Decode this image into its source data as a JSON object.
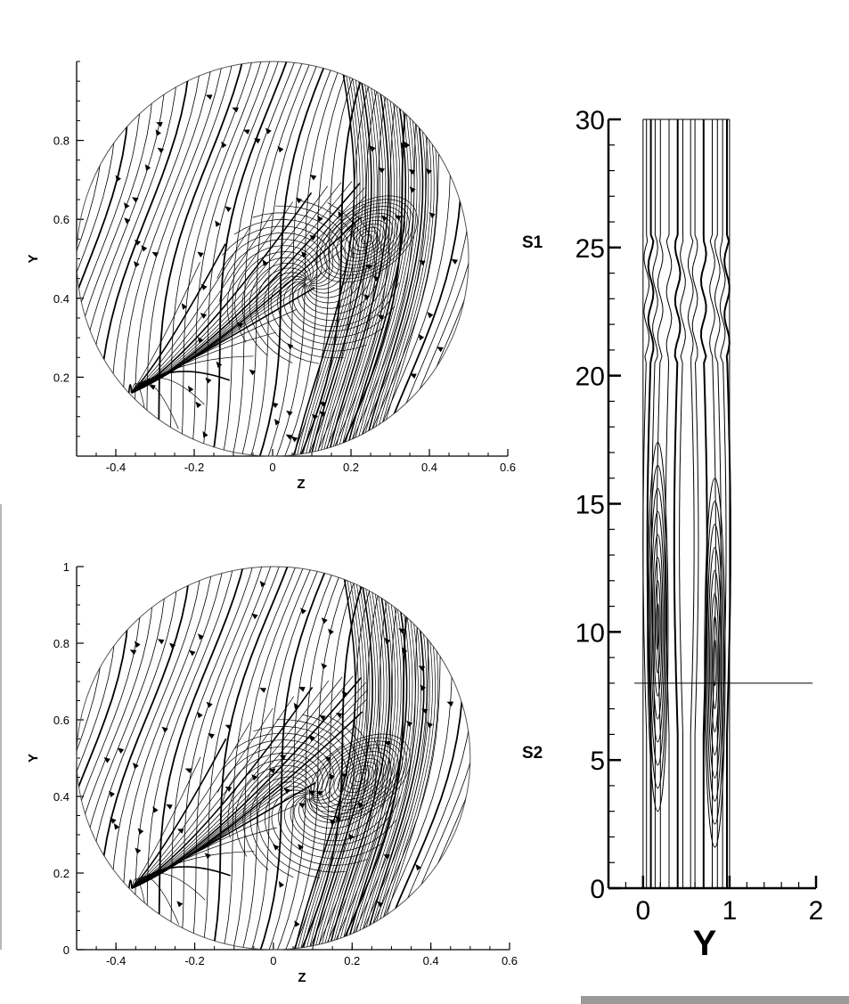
{
  "panels": [
    {
      "id": "top",
      "section_label": "S1",
      "xlabel": "Z",
      "ylabel": "Y",
      "xticks": [
        -0.4,
        -0.2,
        0,
        0.2,
        0.4,
        0.6
      ],
      "xtick_labels": [
        "-0.4",
        "-0.2",
        "0",
        "0.2",
        "0.4",
        "0.6"
      ],
      "yticks": [
        0.2,
        0.4,
        0.6,
        0.8
      ],
      "ytick_labels": [
        "0.2",
        "0.4",
        "0.6",
        "0.8"
      ],
      "xlim": [
        -0.5,
        0.6
      ],
      "ylim": [
        0,
        1
      ],
      "circle_center": [
        0,
        0.5
      ],
      "circle_radius": 0.5
    },
    {
      "id": "bottom",
      "section_label": "S2",
      "xlabel": "Z",
      "ylabel": "Y",
      "xticks": [
        -0.4,
        -0.2,
        0,
        0.2,
        0.4,
        0.6
      ],
      "xtick_labels": [
        "-0.4",
        "-0.2",
        "0",
        "0.2",
        "0.4",
        "0.6"
      ],
      "yticks": [
        0,
        0.2,
        0.4,
        0.6,
        0.8,
        1
      ],
      "ytick_labels": [
        "0",
        "0.2",
        "0.4",
        "0.6",
        "0.8",
        "1"
      ],
      "xlim": [
        -0.5,
        0.6
      ],
      "ylim": [
        0,
        1
      ],
      "circle_center": [
        0,
        0.5
      ],
      "circle_radius": 0.5
    }
  ],
  "side_plot": {
    "xlabel": "Y",
    "xticks": [
      0,
      1,
      2
    ],
    "xtick_labels": [
      "0",
      "1",
      "2"
    ],
    "yticks": [
      0,
      5,
      10,
      15,
      20,
      25,
      30
    ],
    "ytick_labels": [
      "0",
      "5",
      "10",
      "15",
      "20",
      "25",
      "30"
    ],
    "xlim": [
      -0.4,
      2
    ],
    "ylim": [
      0,
      30
    ],
    "channel": [
      0,
      1
    ],
    "section_line_y": 8
  },
  "colors": {
    "line": "#000000",
    "circle": "#555555",
    "bar": "#9a9a9a"
  }
}
